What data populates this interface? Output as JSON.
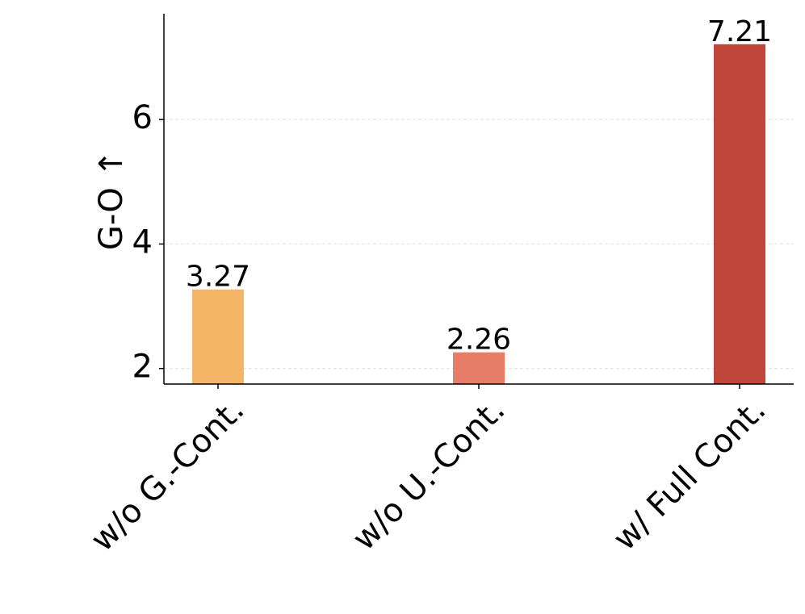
{
  "chart_data": {
    "type": "bar",
    "ylabel": "G-O ↑",
    "categories": [
      "w/o G.-Cont.",
      "w/o U.-Cont.",
      "w/ Full Cont."
    ],
    "values": [
      3.27,
      2.26,
      7.21
    ],
    "colors": [
      "#f5b567",
      "#e87d67",
      "#c0463c"
    ],
    "ylim": [
      1.75,
      7.7
    ],
    "yticks": [
      2,
      4,
      6
    ],
    "grid": true
  }
}
